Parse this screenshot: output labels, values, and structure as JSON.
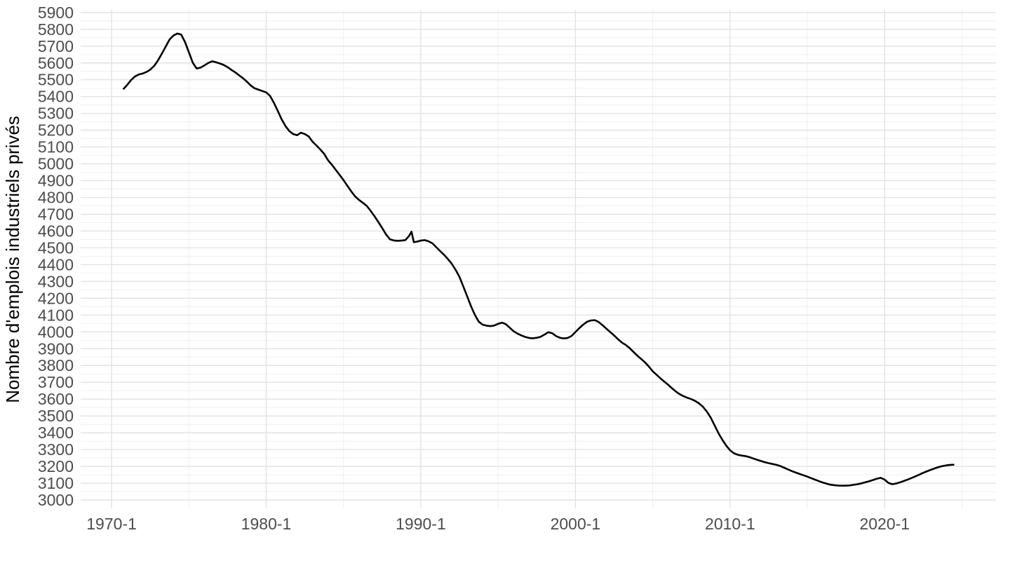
{
  "chart_data": {
    "type": "line",
    "title": "",
    "xlabel": "",
    "ylabel": "Nombre d'emplois industriels privés",
    "legend": "none",
    "grid": "major and minor, light gray on white",
    "x_axis": {
      "domain": [
        1968.0,
        2027.2
      ],
      "major_ticks": [
        1970,
        1980,
        1990,
        2000,
        2010,
        2020
      ],
      "tick_labels": [
        "1970-1",
        "1980-1",
        "1990-1",
        "2000-1",
        "2010-1",
        "2020-1"
      ],
      "minor_gridlines": [
        1975,
        1985,
        1995,
        2005,
        2015,
        2025
      ]
    },
    "y_axis": {
      "domain": [
        2950,
        5916
      ],
      "major_ticks": [
        3000,
        3100,
        3200,
        3300,
        3400,
        3500,
        3600,
        3700,
        3800,
        3900,
        4000,
        4100,
        4200,
        4300,
        4400,
        4500,
        4600,
        4700,
        4800,
        4900,
        5000,
        5100,
        5200,
        5300,
        5400,
        5500,
        5600,
        5700,
        5800,
        5900
      ],
      "minor_gridlines": [
        3050,
        3150,
        3250,
        3350,
        3450,
        3550,
        3650,
        3750,
        3850,
        3950,
        4050,
        4150,
        4250,
        4350,
        4450,
        4550,
        4650,
        4750,
        4850,
        4950,
        5050,
        5150,
        5250,
        5350,
        5450,
        5550,
        5650,
        5750,
        5850
      ]
    },
    "series": [
      {
        "name": "Nombre d'emplois industriels privés",
        "color": "#000000",
        "points": [
          [
            1970.75,
            5443
          ],
          [
            1971,
            5468
          ],
          [
            1971.25,
            5497
          ],
          [
            1971.5,
            5519
          ],
          [
            1971.75,
            5531
          ],
          [
            1972,
            5537
          ],
          [
            1972.25,
            5546
          ],
          [
            1972.5,
            5560
          ],
          [
            1972.75,
            5582
          ],
          [
            1973,
            5615
          ],
          [
            1973.25,
            5655
          ],
          [
            1973.5,
            5697
          ],
          [
            1973.75,
            5740
          ],
          [
            1974,
            5763
          ],
          [
            1974.25,
            5775
          ],
          [
            1974.5,
            5769
          ],
          [
            1974.75,
            5724
          ],
          [
            1975,
            5663
          ],
          [
            1975.25,
            5602
          ],
          [
            1975.5,
            5567
          ],
          [
            1975.75,
            5572
          ],
          [
            1976,
            5585
          ],
          [
            1976.25,
            5600
          ],
          [
            1976.5,
            5610
          ],
          [
            1976.75,
            5604
          ],
          [
            1977,
            5597
          ],
          [
            1977.25,
            5588
          ],
          [
            1977.5,
            5575
          ],
          [
            1977.75,
            5559
          ],
          [
            1978,
            5544
          ],
          [
            1978.25,
            5526
          ],
          [
            1978.5,
            5509
          ],
          [
            1978.75,
            5489
          ],
          [
            1979,
            5466
          ],
          [
            1979.25,
            5449
          ],
          [
            1979.5,
            5441
          ],
          [
            1979.75,
            5433
          ],
          [
            1980,
            5425
          ],
          [
            1980.25,
            5404
          ],
          [
            1980.5,
            5363
          ],
          [
            1980.75,
            5314
          ],
          [
            1981,
            5264
          ],
          [
            1981.25,
            5224
          ],
          [
            1981.5,
            5194
          ],
          [
            1981.75,
            5177
          ],
          [
            1982,
            5170
          ],
          [
            1982.25,
            5185
          ],
          [
            1982.5,
            5177
          ],
          [
            1982.75,
            5163
          ],
          [
            1983,
            5131
          ],
          [
            1983.25,
            5109
          ],
          [
            1983.5,
            5085
          ],
          [
            1983.75,
            5059
          ],
          [
            1984,
            5021
          ],
          [
            1984.25,
            4994
          ],
          [
            1984.5,
            4964
          ],
          [
            1984.75,
            4934
          ],
          [
            1985,
            4903
          ],
          [
            1985.25,
            4869
          ],
          [
            1985.5,
            4836
          ],
          [
            1985.75,
            4806
          ],
          [
            1986,
            4785
          ],
          [
            1986.25,
            4768
          ],
          [
            1986.5,
            4750
          ],
          [
            1986.75,
            4721
          ],
          [
            1987,
            4689
          ],
          [
            1987.25,
            4654
          ],
          [
            1987.5,
            4618
          ],
          [
            1987.75,
            4580
          ],
          [
            1988,
            4551
          ],
          [
            1988.25,
            4544
          ],
          [
            1988.5,
            4542
          ],
          [
            1988.75,
            4543
          ],
          [
            1989,
            4546
          ],
          [
            1989.25,
            4572
          ],
          [
            1989.4,
            4596
          ],
          [
            1989.55,
            4534
          ],
          [
            1989.75,
            4537
          ],
          [
            1990,
            4543
          ],
          [
            1990.25,
            4546
          ],
          [
            1990.5,
            4539
          ],
          [
            1990.75,
            4527
          ],
          [
            1991,
            4504
          ],
          [
            1991.25,
            4481
          ],
          [
            1991.5,
            4459
          ],
          [
            1991.75,
            4434
          ],
          [
            1992,
            4405
          ],
          [
            1992.25,
            4369
          ],
          [
            1992.5,
            4327
          ],
          [
            1992.75,
            4270
          ],
          [
            1993,
            4211
          ],
          [
            1993.25,
            4152
          ],
          [
            1993.5,
            4101
          ],
          [
            1993.75,
            4061
          ],
          [
            1994,
            4043
          ],
          [
            1994.25,
            4037
          ],
          [
            1994.5,
            4034
          ],
          [
            1994.75,
            4038
          ],
          [
            1995,
            4048
          ],
          [
            1995.25,
            4055
          ],
          [
            1995.5,
            4046
          ],
          [
            1995.75,
            4025
          ],
          [
            1996,
            4004
          ],
          [
            1996.25,
            3990
          ],
          [
            1996.5,
            3979
          ],
          [
            1996.75,
            3970
          ],
          [
            1997,
            3964
          ],
          [
            1997.25,
            3962
          ],
          [
            1997.5,
            3965
          ],
          [
            1997.75,
            3971
          ],
          [
            1998,
            3984
          ],
          [
            1998.25,
            3998
          ],
          [
            1998.5,
            3992
          ],
          [
            1998.75,
            3975
          ],
          [
            1999,
            3965
          ],
          [
            1999.25,
            3961
          ],
          [
            1999.5,
            3964
          ],
          [
            1999.75,
            3976
          ],
          [
            2000,
            3999
          ],
          [
            2000.25,
            4022
          ],
          [
            2000.5,
            4043
          ],
          [
            2000.75,
            4060
          ],
          [
            2001,
            4068
          ],
          [
            2001.25,
            4070
          ],
          [
            2001.5,
            4059
          ],
          [
            2001.75,
            4040
          ],
          [
            2002,
            4019
          ],
          [
            2002.25,
            3999
          ],
          [
            2002.5,
            3979
          ],
          [
            2002.75,
            3957
          ],
          [
            2003,
            3937
          ],
          [
            2003.25,
            3923
          ],
          [
            2003.5,
            3904
          ],
          [
            2003.75,
            3881
          ],
          [
            2004,
            3859
          ],
          [
            2004.25,
            3839
          ],
          [
            2004.5,
            3819
          ],
          [
            2004.75,
            3794
          ],
          [
            2005,
            3766
          ],
          [
            2005.25,
            3745
          ],
          [
            2005.5,
            3724
          ],
          [
            2005.75,
            3704
          ],
          [
            2006,
            3685
          ],
          [
            2006.25,
            3664
          ],
          [
            2006.5,
            3645
          ],
          [
            2006.75,
            3629
          ],
          [
            2007,
            3617
          ],
          [
            2007.25,
            3608
          ],
          [
            2007.5,
            3600
          ],
          [
            2007.75,
            3589
          ],
          [
            2008,
            3574
          ],
          [
            2008.25,
            3554
          ],
          [
            2008.5,
            3526
          ],
          [
            2008.75,
            3490
          ],
          [
            2009,
            3444
          ],
          [
            2009.25,
            3398
          ],
          [
            2009.5,
            3359
          ],
          [
            2009.75,
            3324
          ],
          [
            2010,
            3296
          ],
          [
            2010.25,
            3278
          ],
          [
            2010.5,
            3269
          ],
          [
            2010.75,
            3264
          ],
          [
            2011,
            3261
          ],
          [
            2011.25,
            3255
          ],
          [
            2011.5,
            3247
          ],
          [
            2011.75,
            3239
          ],
          [
            2012,
            3232
          ],
          [
            2012.25,
            3225
          ],
          [
            2012.5,
            3219
          ],
          [
            2012.75,
            3214
          ],
          [
            2013,
            3209
          ],
          [
            2013.25,
            3202
          ],
          [
            2013.5,
            3192
          ],
          [
            2013.75,
            3182
          ],
          [
            2014,
            3172
          ],
          [
            2014.25,
            3163
          ],
          [
            2014.5,
            3155
          ],
          [
            2014.75,
            3147
          ],
          [
            2015,
            3139
          ],
          [
            2015.25,
            3130
          ],
          [
            2015.5,
            3121
          ],
          [
            2015.75,
            3112
          ],
          [
            2016,
            3104
          ],
          [
            2016.25,
            3097
          ],
          [
            2016.5,
            3091
          ],
          [
            2016.75,
            3088
          ],
          [
            2017,
            3086
          ],
          [
            2017.25,
            3085
          ],
          [
            2017.5,
            3085
          ],
          [
            2017.75,
            3087
          ],
          [
            2018,
            3090
          ],
          [
            2018.25,
            3094
          ],
          [
            2018.5,
            3099
          ],
          [
            2018.75,
            3105
          ],
          [
            2019,
            3112
          ],
          [
            2019.25,
            3119
          ],
          [
            2019.5,
            3127
          ],
          [
            2019.75,
            3132
          ],
          [
            2020,
            3121
          ],
          [
            2020.25,
            3101
          ],
          [
            2020.5,
            3094
          ],
          [
            2020.75,
            3098
          ],
          [
            2021,
            3105
          ],
          [
            2021.25,
            3113
          ],
          [
            2021.5,
            3122
          ],
          [
            2021.75,
            3131
          ],
          [
            2022,
            3141
          ],
          [
            2022.25,
            3151
          ],
          [
            2022.5,
            3162
          ],
          [
            2022.75,
            3171
          ],
          [
            2023,
            3180
          ],
          [
            2023.25,
            3188
          ],
          [
            2023.5,
            3196
          ],
          [
            2023.75,
            3202
          ],
          [
            2024,
            3206
          ],
          [
            2024.25,
            3209
          ],
          [
            2024.5,
            3210
          ]
        ]
      }
    ]
  },
  "colors": {
    "background": "#ffffff",
    "grid_major": "#e2e2e2",
    "grid_minor": "#efefef",
    "tick_label": "#4d4d4d",
    "axis_title": "#000000",
    "line": "#000000"
  }
}
